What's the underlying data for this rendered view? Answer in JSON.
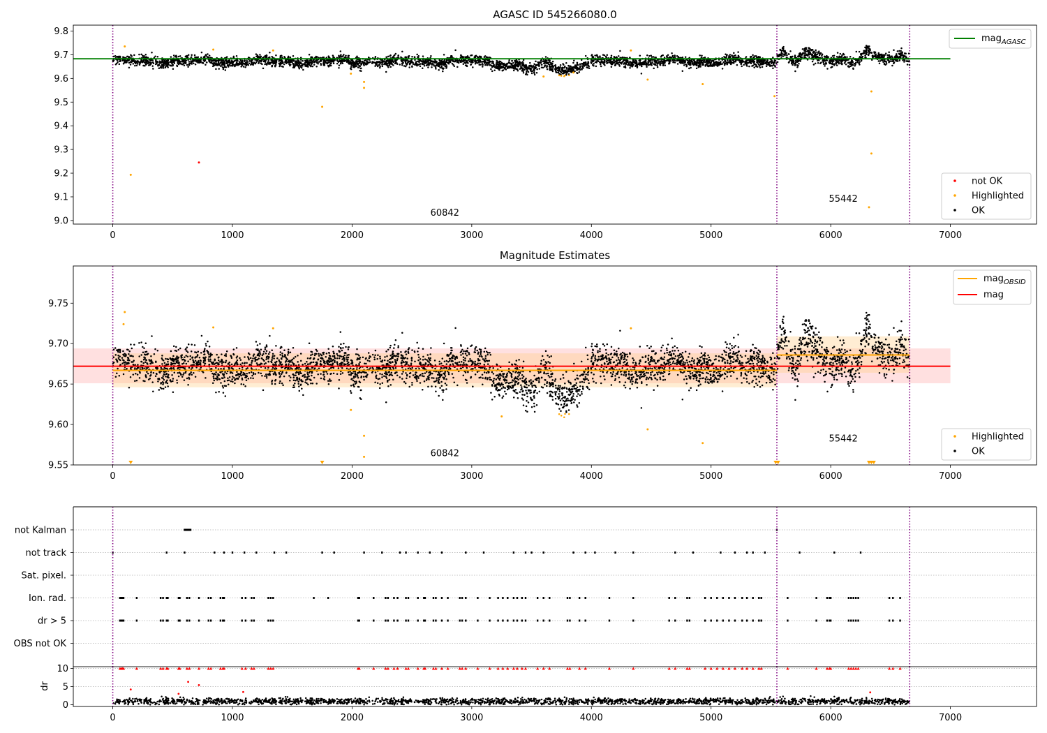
{
  "chart_data": [
    {
      "type": "scatter",
      "title": "AGASC ID 545266080.0",
      "xlim": [
        -330,
        7720
      ],
      "ylim": [
        8.985,
        9.825
      ],
      "xticks": [
        0,
        1000,
        2000,
        3000,
        4000,
        5000,
        6000,
        7000
      ],
      "yticks": [
        9.0,
        9.1,
        9.2,
        9.3,
        9.4,
        9.5,
        9.6,
        9.7,
        9.8
      ],
      "vlines": [
        0,
        5550,
        6660
      ],
      "annotations": [
        {
          "text": "60842",
          "x": 2775,
          "y": 9.02
        },
        {
          "text": "55442",
          "x": 6105,
          "y": 9.08
        }
      ],
      "lines": [
        {
          "name": "mag_AGASC",
          "label_main": "mag",
          "label_sub": "AGASC",
          "color": "#008000",
          "y": 9.683,
          "x": [
            -330,
            7000
          ]
        }
      ],
      "series": [
        {
          "name": "not OK",
          "color": "#ff0000",
          "points": [
            [
              720,
              9.245
            ]
          ]
        },
        {
          "name": "Highlighted",
          "color": "#ffa500",
          "points": [
            [
              150,
              9.193
            ],
            [
              100,
              9.735
            ],
            [
              840,
              9.722
            ],
            [
              1340,
              9.718
            ],
            [
              1750,
              9.48
            ],
            [
              2100,
              9.585
            ],
            [
              2100,
              9.56
            ],
            [
              1990,
              9.62
            ],
            [
              4330,
              9.718
            ],
            [
              4470,
              9.595
            ],
            [
              4930,
              9.576
            ],
            [
              5530,
              9.525
            ],
            [
              6340,
              9.545
            ],
            [
              6340,
              9.283
            ],
            [
              6320,
              9.056
            ],
            [
              3600,
              9.608
            ],
            [
              3850,
              9.625
            ]
          ]
        },
        {
          "name": "OK",
          "color": "#000000",
          "points": []
        }
      ],
      "legend_lines": [
        {
          "name": "mag_AGASC"
        }
      ],
      "legend_points": [
        "not OK",
        "Highlighted",
        "OK"
      ]
    },
    {
      "type": "scatter",
      "title": "Magnitude Estimates",
      "xlim": [
        -330,
        7720
      ],
      "ylim": [
        9.55,
        9.796
      ],
      "xticks": [
        0,
        1000,
        2000,
        3000,
        4000,
        5000,
        6000,
        7000
      ],
      "yticks": [
        9.55,
        9.6,
        9.65,
        9.7,
        9.75
      ],
      "vlines": [
        0,
        5550,
        6660
      ],
      "annotations": [
        {
          "text": "60842",
          "x": 2775,
          "y": 9.561
        },
        {
          "text": "55442",
          "x": 6105,
          "y": 9.579
        }
      ],
      "bands": [
        {
          "color": "#ff9999",
          "opacity": 0.3,
          "x": [
            -330,
            7000
          ],
          "y": [
            9.651,
            9.694
          ]
        },
        {
          "color": "#ffcc80",
          "opacity": 0.35,
          "x": [
            0,
            5550
          ],
          "y": [
            9.646,
            9.688
          ]
        },
        {
          "color": "#ffcc80",
          "opacity": 0.35,
          "x": [
            5550,
            6660
          ],
          "y": [
            9.664,
            9.709
          ]
        }
      ],
      "lines": [
        {
          "name": "mag_OBSID",
          "label_main": "mag",
          "label_sub": "OBSID",
          "color": "#ffa500",
          "segments": [
            [
              0,
              5550,
              9.667
            ],
            [
              5550,
              6660,
              9.686
            ]
          ]
        },
        {
          "name": "mag",
          "label_main": "mag",
          "label_sub": "",
          "color": "#ff0000",
          "segments": [
            [
              -330,
              7000,
              9.672
            ]
          ]
        }
      ],
      "series": [
        {
          "name": "Highlighted",
          "color": "#ffa500",
          "points": [
            [
              100,
              9.739
            ],
            [
              90,
              9.724
            ],
            [
              840,
              9.72
            ],
            [
              1340,
              9.719
            ],
            [
              4330,
              9.719
            ],
            [
              1990,
              9.618
            ],
            [
              2100,
              9.586
            ],
            [
              2100,
              9.56
            ],
            [
              4470,
              9.594
            ],
            [
              4930,
              9.577
            ],
            [
              3250,
              9.61
            ]
          ]
        },
        {
          "name": "OK",
          "color": "#000000",
          "points": []
        }
      ],
      "clipped_markers": [
        150,
        1750,
        5540,
        5560,
        6320,
        6340,
        6360
      ],
      "legend_lines": [
        {
          "name": "mag_OBSID"
        },
        {
          "name": "mag"
        }
      ],
      "legend_points": [
        "Highlighted",
        "OK"
      ]
    },
    {
      "type": "scatter",
      "title": "",
      "xlim": [
        -330,
        7720
      ],
      "categories": [
        "not Kalman",
        "not track",
        "Sat. pixel.",
        "Ion. rad.",
        "dr > 5",
        "OBS not OK"
      ],
      "vlines": [
        0,
        5550,
        6660
      ],
      "flag_positions": {
        "not Kalman": [
          600,
          610,
          620,
          630,
          640,
          650,
          5550
        ],
        "not track": [
          0,
          450,
          600,
          850,
          930,
          1000,
          1100,
          1200,
          1350,
          1450,
          1750,
          1850,
          2100,
          2250,
          2400,
          2450,
          2550,
          2650,
          2750,
          2950,
          3100,
          3350,
          3450,
          3500,
          3600,
          3850,
          3950,
          4030,
          4200,
          4350,
          4700,
          4850,
          5080,
          5200,
          5300,
          5350,
          5450,
          5740,
          6030,
          6250
        ],
        "Sat. pixel.": [],
        "Ion. rad.": [
          60,
          70,
          80,
          90,
          200,
          400,
          420,
          450,
          460,
          550,
          560,
          620,
          640,
          720,
          800,
          820,
          900,
          920,
          930,
          1080,
          1110,
          1160,
          1180,
          1300,
          1320,
          1340,
          1680,
          1800,
          2050,
          2060,
          2180,
          2280,
          2300,
          2350,
          2380,
          2450,
          2470,
          2550,
          2600,
          2610,
          2680,
          2700,
          2750,
          2800,
          2900,
          2920,
          2950,
          3050,
          3150,
          3220,
          3260,
          3300,
          3350,
          3380,
          3420,
          3450,
          3550,
          3600,
          3650,
          3800,
          3820,
          3900,
          3950,
          4150,
          4350,
          4650,
          4700,
          4800,
          4820,
          4950,
          5000,
          5050,
          5100,
          5150,
          5200,
          5260,
          5300,
          5350,
          5400,
          5420,
          5640,
          5880,
          5970,
          5990,
          6000,
          6150,
          6170,
          6190,
          6210,
          6230,
          6490,
          6520,
          6580
        ],
        "dr > 5": [
          60,
          70,
          80,
          90,
          200,
          400,
          420,
          450,
          460,
          550,
          560,
          620,
          640,
          720,
          800,
          820,
          900,
          920,
          930,
          1080,
          1110,
          1160,
          1180,
          1300,
          1320,
          1340,
          2050,
          2060,
          2180,
          2280,
          2300,
          2350,
          2380,
          2450,
          2470,
          2550,
          2600,
          2610,
          2680,
          2700,
          2750,
          2800,
          2900,
          2920,
          2950,
          3050,
          3150,
          3220,
          3260,
          3300,
          3350,
          3380,
          3420,
          3450,
          3550,
          3600,
          3650,
          3800,
          3820,
          3900,
          3950,
          4150,
          4350,
          4650,
          4700,
          4800,
          4820,
          4950,
          5000,
          5050,
          5100,
          5150,
          5200,
          5260,
          5300,
          5350,
          5400,
          5420,
          5640,
          5880,
          5970,
          5990,
          6000,
          6150,
          6170,
          6190,
          6210,
          6230,
          6490,
          6520,
          6580
        ],
        "OBS not OK": []
      }
    },
    {
      "type": "scatter",
      "title": "",
      "ylabel": "dr",
      "xlim": [
        -330,
        7720
      ],
      "ylim": [
        -0.5,
        10.5
      ],
      "xticks": [
        0,
        1000,
        2000,
        3000,
        4000,
        5000,
        6000,
        7000
      ],
      "yticks": [
        0,
        5,
        10
      ],
      "vlines": [
        0,
        5550,
        6660
      ],
      "series": [
        {
          "name": "dr large",
          "color": "#ff0000",
          "points": [
            [
              150,
              4.2
            ],
            [
              550,
              3.0
            ],
            [
              630,
              6.3
            ],
            [
              720,
              5.4
            ],
            [
              1090,
              3.5
            ],
            [
              6330,
              3.4
            ]
          ]
        }
      ]
    }
  ]
}
